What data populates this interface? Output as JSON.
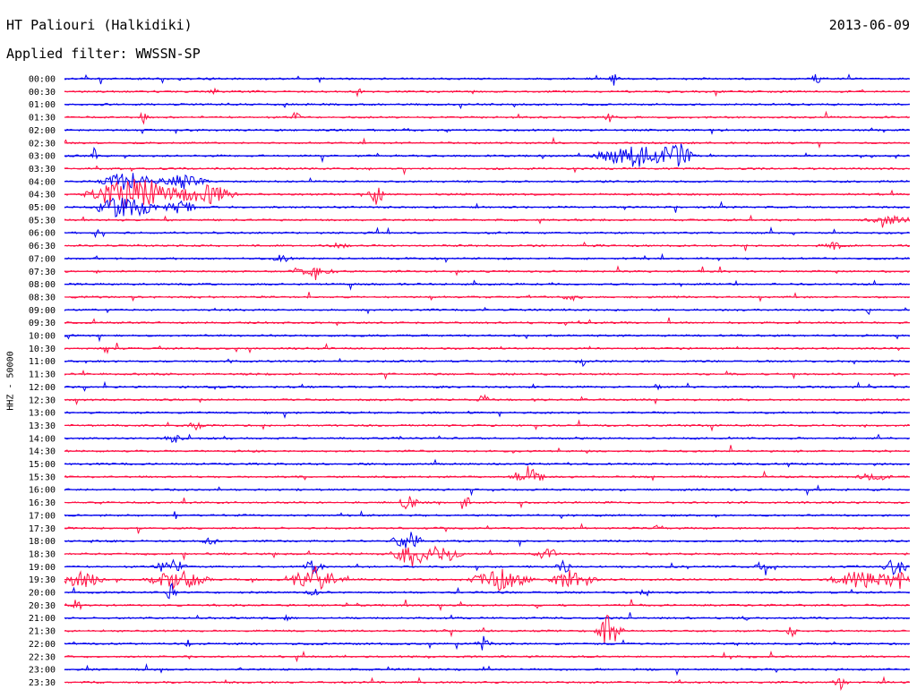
{
  "header": {
    "station": "HT Paliouri (Halkidiki)",
    "date": "2013-06-09",
    "filter": "Applied filter: WWSSN-SP",
    "channel": "HHZ - 50000"
  },
  "colors": {
    "blue": "#0000ee",
    "red": "#ff1144",
    "text": "#000000"
  },
  "chart_data": {
    "type": "line",
    "time_labels": [
      "00:00",
      "00:30",
      "01:00",
      "01:30",
      "02:00",
      "02:30",
      "03:00",
      "03:30",
      "04:00",
      "04:30",
      "05:00",
      "05:30",
      "06:00",
      "06:30",
      "07:00",
      "07:30",
      "08:00",
      "08:30",
      "09:00",
      "09:30",
      "10:00",
      "10:30",
      "11:00",
      "11:30",
      "12:00",
      "12:30",
      "13:00",
      "13:30",
      "14:00",
      "14:30",
      "15:00",
      "15:30",
      "16:00",
      "16:30",
      "17:00",
      "17:30",
      "18:00",
      "18:30",
      "19:00",
      "19:30",
      "20:00",
      "20:30",
      "21:00",
      "21:30",
      "22:00",
      "22:30",
      "23:00",
      "23:30"
    ],
    "line_color_cycle": [
      "blue",
      "red"
    ],
    "trace_minutes": 30
  }
}
